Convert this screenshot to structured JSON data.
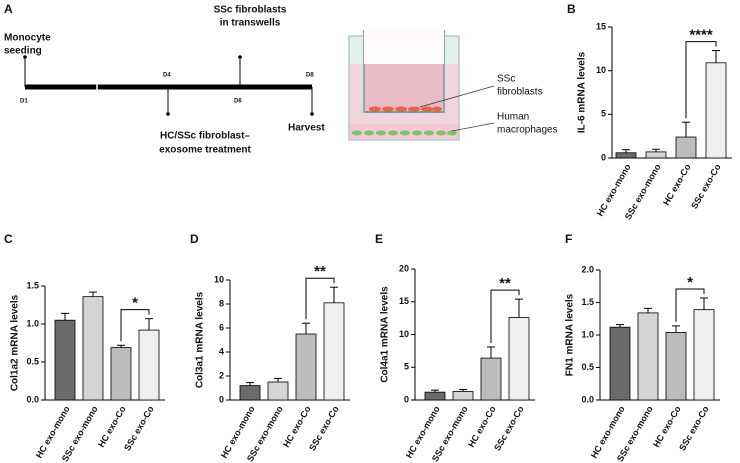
{
  "diagram": {
    "panel": "A",
    "start_label": [
      "Monocyte",
      "seeding"
    ],
    "transwell_label": [
      "SSc fibroblasts",
      "in transwells"
    ],
    "treatment_label": [
      "HC/SSc fibroblast–",
      "exosome treatment"
    ],
    "harvest_label": "Harvest",
    "days": [
      "D1",
      "D4",
      "D6",
      "D8"
    ],
    "fibroblast_label": [
      "SSc",
      "fibroblasts"
    ],
    "macrophage_label": [
      "Human",
      "macrophages"
    ]
  },
  "chart_data": [
    {
      "type": "bar",
      "panel": "B",
      "ylabel": "IL-6 mRNA levels",
      "categories": [
        "HC exo-mono",
        "SSc exo-mono",
        "HC exo-Co",
        "SSc exo-Co"
      ],
      "values": [
        0.6,
        0.7,
        2.4,
        10.9
      ],
      "errors": [
        0.35,
        0.3,
        1.7,
        1.4
      ],
      "colors": [
        "#6b6b6b",
        "#d4d4d4",
        "#bcbcbc",
        "#efefef"
      ],
      "ylim": [
        0,
        15
      ],
      "yticks": [
        0,
        5,
        10,
        15
      ],
      "significance": {
        "label": "****",
        "pair": [
          "HC exo-Co",
          "SSc exo-Co"
        ]
      }
    },
    {
      "type": "bar",
      "panel": "C",
      "ylabel": "Col1a2 mRNA levels",
      "categories": [
        "HC exo-mono",
        "SSc exo-mono",
        "HC exo-Co",
        "SSc exo-Co"
      ],
      "values": [
        1.05,
        1.36,
        0.69,
        0.92
      ],
      "errors": [
        0.09,
        0.06,
        0.03,
        0.15
      ],
      "colors": [
        "#6b6b6b",
        "#d4d4d4",
        "#bcbcbc",
        "#efefef"
      ],
      "ylim": [
        0,
        1.5
      ],
      "yticks": [
        {
          "value": 0,
          "label": "0.0"
        },
        0.5,
        {
          "value": 1,
          "label": "1.0"
        },
        1.5
      ],
      "significance": {
        "label": "*",
        "pair": [
          "HC exo-Co",
          "SSc exo-Co"
        ]
      }
    },
    {
      "type": "bar",
      "panel": "D",
      "ylabel": "Col3a1 mRNA levels",
      "categories": [
        "HC exo-mono",
        "SSc exo-mono",
        "HC exo-Co",
        "SSc exo-Co"
      ],
      "values": [
        1.2,
        1.5,
        5.5,
        8.1
      ],
      "errors": [
        0.25,
        0.3,
        0.9,
        1.3
      ],
      "colors": [
        "#6b6b6b",
        "#d4d4d4",
        "#bcbcbc",
        "#efefef"
      ],
      "ylim": [
        0,
        10
      ],
      "yticks": [
        0,
        2,
        4,
        6,
        8,
        10
      ],
      "significance": {
        "label": "**",
        "pair": [
          "HC exo-Co",
          "SSc exo-Co"
        ]
      }
    },
    {
      "type": "bar",
      "panel": "E",
      "ylabel": "Col4a1 mRNA levels",
      "categories": [
        "HC exo-mono",
        "SSc exo-mono",
        "HC exo-Co",
        "SSc exo-Co"
      ],
      "values": [
        1.2,
        1.3,
        6.4,
        12.6
      ],
      "errors": [
        0.3,
        0.3,
        1.7,
        2.8
      ],
      "colors": [
        "#6b6b6b",
        "#d4d4d4",
        "#bcbcbc",
        "#efefef"
      ],
      "ylim": [
        0,
        20
      ],
      "yticks": [
        0,
        5,
        10,
        15,
        20
      ],
      "significance": {
        "label": "**",
        "pair": [
          "HC exo-Co",
          "SSc exo-Co"
        ]
      }
    },
    {
      "type": "bar",
      "panel": "F",
      "ylabel": "FN1 mRNA levels",
      "categories": [
        "HC exo-mono",
        "SSc exo-mono",
        "HC exo-Co",
        "SSc exo-Co"
      ],
      "values": [
        1.12,
        1.34,
        1.04,
        1.39
      ],
      "errors": [
        0.04,
        0.07,
        0.1,
        0.18
      ],
      "colors": [
        "#6b6b6b",
        "#d4d4d4",
        "#bcbcbc",
        "#efefef"
      ],
      "ylim": [
        0,
        2
      ],
      "yticks": [
        {
          "value": 0,
          "label": "0.0"
        },
        0.5,
        {
          "value": 1,
          "label": "1.0"
        },
        1.5,
        {
          "value": 2,
          "label": "2.0"
        }
      ],
      "significance": {
        "label": "*",
        "pair": [
          "HC exo-Co",
          "SSc exo-Co"
        ]
      }
    }
  ]
}
